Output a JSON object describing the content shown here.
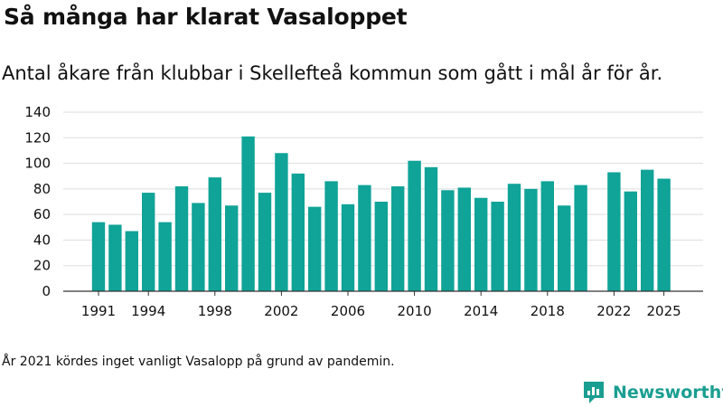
{
  "header": {
    "title": "Så många har klarat Vasaloppet",
    "subtitle": "Antal åkare från klubbar i Skellefteå kommun som gått i mål år för år."
  },
  "footer": {
    "note": "År 2021 kördes inget vanligt Vasalopp på grund av pandemin.",
    "brand": "Newsworthy"
  },
  "colors": {
    "bar": "#10a398",
    "grid": "#dddddd",
    "axis": "#333333",
    "brand": "#1a9e91"
  },
  "chart_data": {
    "type": "bar",
    "title": "Så många har klarat Vasaloppet",
    "subtitle": "Antal åkare från klubbar i Skellefteå kommun som gått i mål år för år.",
    "xlabel": "",
    "ylabel": "",
    "ylim": [
      0,
      140
    ],
    "yticks": [
      0,
      20,
      40,
      60,
      80,
      100,
      120,
      140
    ],
    "xticks": [
      1991,
      1994,
      1998,
      2002,
      2006,
      2010,
      2014,
      2018,
      2022,
      2025
    ],
    "grid": true,
    "categories": [
      1991,
      1992,
      1993,
      1994,
      1995,
      1996,
      1997,
      1998,
      1999,
      2000,
      2001,
      2002,
      2003,
      2004,
      2005,
      2006,
      2007,
      2008,
      2009,
      2010,
      2011,
      2012,
      2013,
      2014,
      2015,
      2016,
      2017,
      2018,
      2019,
      2020,
      2021,
      2022,
      2023,
      2024,
      2025
    ],
    "values": [
      54,
      52,
      47,
      77,
      54,
      82,
      69,
      89,
      67,
      121,
      77,
      108,
      92,
      66,
      86,
      68,
      83,
      70,
      82,
      102,
      97,
      79,
      81,
      73,
      70,
      84,
      80,
      86,
      67,
      83,
      null,
      93,
      78,
      95,
      88
    ]
  }
}
